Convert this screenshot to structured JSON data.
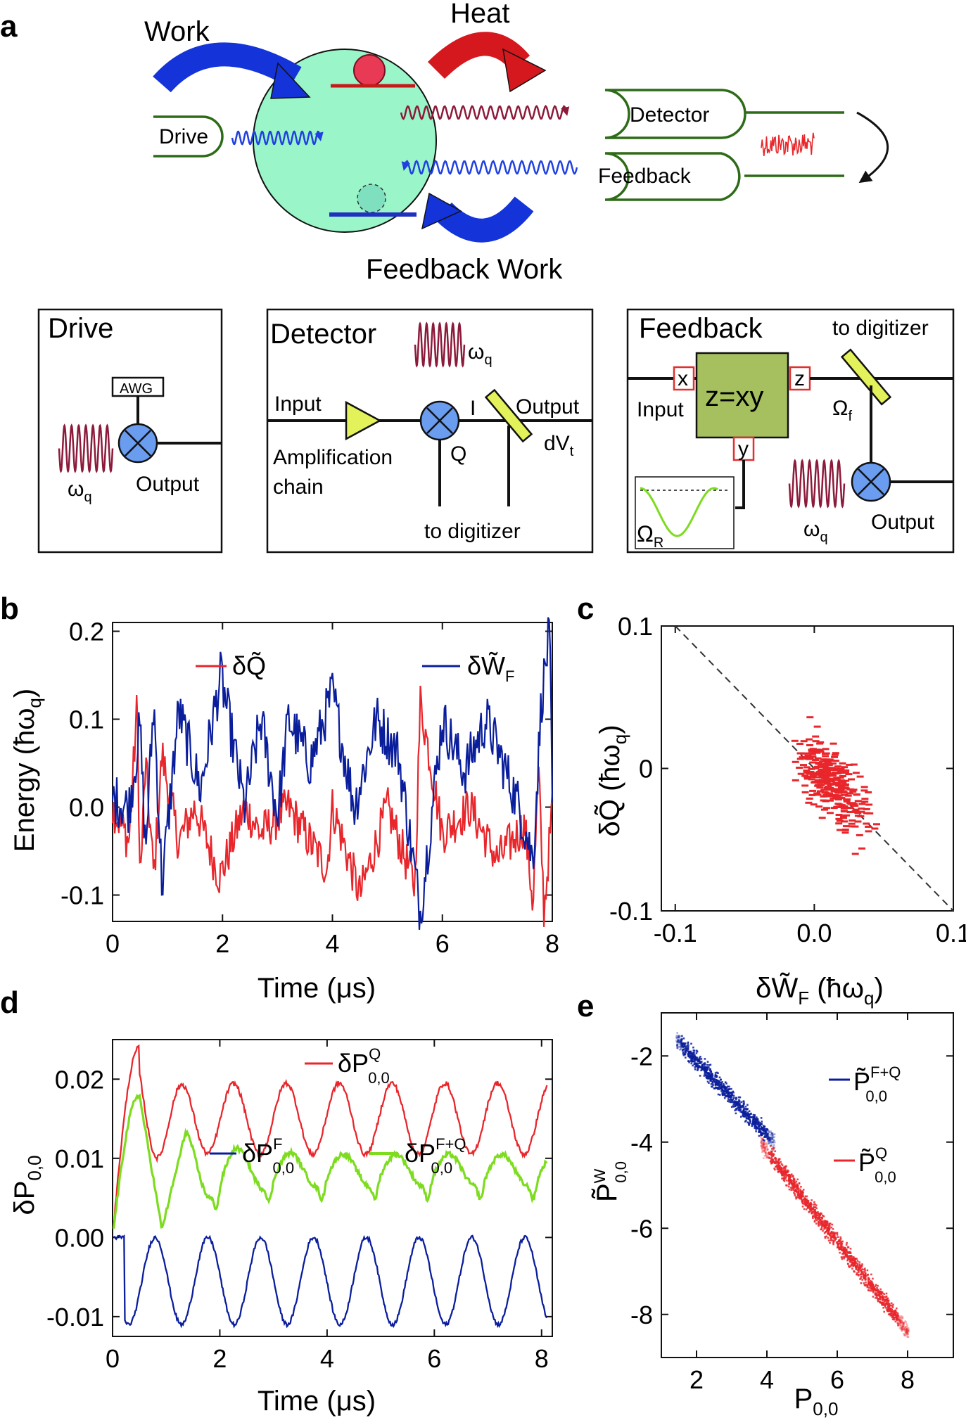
{
  "panel_a": {
    "letter": "a",
    "top": {
      "work": "Work",
      "heat": "Heat",
      "feedback_work": "Feedback Work",
      "drive": "Drive",
      "detector": "Detector",
      "feedback": "Feedback"
    },
    "drive_box": {
      "title": "Drive",
      "awg": "AWG",
      "omega": "ω",
      "omega_sub": "q",
      "output": "Output"
    },
    "detector_box": {
      "title": "Detector",
      "omega": "ω",
      "omega_sub": "q",
      "input": "Input",
      "amp1": "Amplification",
      "amp2": "chain",
      "i": "I",
      "q": "Q",
      "output": "Output",
      "dv": "dV",
      "dv_sub": "t",
      "digitizer": "to digitizer"
    },
    "feedback_box": {
      "title": "Feedback",
      "digitizer": "to digitizer",
      "x": "x",
      "z": "z",
      "y": "y",
      "formula": "z=xy",
      "input": "Input",
      "omega_f": "Ω",
      "omega_f_sub": "f",
      "omega_r": "Ω",
      "omega_r_sub": "R",
      "omega": "ω",
      "omega_sub": "q",
      "output": "Output"
    }
  },
  "panel_b": {
    "letter": "b",
    "ylabel": "Energy (ħω",
    "ylabel_sub": "q",
    "ylabel_end": ")",
    "xlabel": "Time (μs)",
    "legend_q": "δQ̃",
    "legend_w": "δW̃",
    "legend_w_sub": "F"
  },
  "panel_c": {
    "letter": "c",
    "ylabel": "δQ̃ (ħω",
    "ylabel_sub": "q",
    "ylabel_end": ")",
    "xlabel": "δW̃",
    "xlabel_sub": "F",
    "xlabel_end": " (ħω",
    "xlabel_sub2": "q",
    "xlabel_end2": ")"
  },
  "panel_d": {
    "letter": "d",
    "ylabel": "δP",
    "ylabel_sub": "0,0",
    "xlabel": "Time (μs)",
    "leg_q": "δP",
    "leg_q_sup": "Q",
    "leg_q_sub": "0,0",
    "leg_f": "δP",
    "leg_f_sup": "F",
    "leg_f_sub": "0,0",
    "leg_fq": "δP",
    "leg_fq_sup": "F+Q",
    "leg_fq_sub": "0,0"
  },
  "panel_e": {
    "letter": "e",
    "ylabel": "P̃",
    "ylabel_sup": "W",
    "ylabel_sub": "0,0",
    "xlabel": "P",
    "xlabel_sub": "0,0",
    "leg_fq": "P̃",
    "leg_fq_sup": "F+Q",
    "leg_fq_sub": "0,0",
    "leg_q": "P̃",
    "leg_q_sup": "Q",
    "leg_q_sub": "0,0"
  },
  "colors": {
    "red": "#e8262b",
    "blue": "#0a1e9c",
    "green": "#7ddc1f",
    "bubble": "#9af5c8",
    "darkgreen": "#2e6b18",
    "wine": "#8c1a3a",
    "olive": "#a6c060",
    "yellow": "#e3f15a",
    "magenta": "#e0509a"
  },
  "chart_data": [
    {
      "type": "line",
      "panel": "b",
      "xlabel": "Time (μs)",
      "ylabel": "Energy (ħωq)",
      "xlim": [
        0,
        8
      ],
      "ylim": [
        -0.13,
        0.21
      ],
      "xticks": [
        0,
        2,
        4,
        6,
        8
      ],
      "yticks": [
        -0.1,
        0.0,
        0.1,
        0.2
      ],
      "ytick_labels": [
        "-0.1",
        "0.0",
        "0.1",
        "0.2"
      ],
      "series": [
        {
          "name": "δQ̃",
          "color": "#e8262b",
          "x": [
            0,
            0.3,
            0.45,
            0.5,
            0.6,
            0.75,
            0.9,
            1.2,
            1.5,
            1.95,
            2.4,
            2.7,
            3.2,
            3.9,
            4.0,
            4.5,
            5.0,
            5.5,
            5.6,
            6.0,
            6.5,
            7.0,
            7.5,
            7.65,
            7.75,
            7.85,
            8.0
          ],
          "y": [
            0.0,
            -0.04,
            0.12,
            -0.09,
            0.05,
            -0.08,
            0.06,
            -0.04,
            0.0,
            -0.08,
            0.0,
            -0.03,
            0.0,
            -0.07,
            0.0,
            -0.1,
            0.0,
            -0.09,
            0.12,
            -0.03,
            0.0,
            -0.06,
            -0.02,
            -0.11,
            0.04,
            -0.12,
            0.0
          ]
        },
        {
          "name": "δW̃F",
          "color": "#0a1e9c",
          "x": [
            0,
            0.3,
            0.5,
            0.6,
            0.75,
            0.9,
            1.2,
            1.6,
            1.97,
            2.4,
            2.7,
            3.0,
            3.2,
            3.6,
            4.0,
            4.4,
            4.8,
            5.2,
            5.6,
            6.0,
            6.4,
            6.8,
            7.4,
            7.65,
            7.8,
            7.95,
            8.0
          ],
          "y": [
            0.01,
            0.0,
            0.09,
            -0.05,
            0.12,
            -0.09,
            0.11,
            0.02,
            0.15,
            0.0,
            0.1,
            -0.01,
            0.1,
            0.05,
            0.13,
            0.0,
            0.1,
            0.06,
            -0.12,
            0.1,
            0.04,
            0.1,
            0.0,
            -0.06,
            0.12,
            0.2,
            0.0
          ]
        }
      ]
    },
    {
      "type": "scatter",
      "panel": "c",
      "xlabel": "δW̃F (ħωq)",
      "ylabel": "δQ̃ (ħωq)",
      "xlim": [
        -0.11,
        0.1
      ],
      "ylim": [
        -0.1,
        0.1
      ],
      "xticks": [
        -0.1,
        0.0,
        0.1
      ],
      "xtick_labels": [
        "-0.1",
        "0.0",
        "0.1"
      ],
      "yticks": [
        -0.1,
        0,
        0.1
      ],
      "ytick_labels": [
        "-0.1",
        "0",
        "0.1"
      ],
      "reference_line": {
        "slope": -1,
        "intercept": 0,
        "style": "dashed"
      },
      "series": [
        {
          "color": "#e8262b",
          "count": 320,
          "trend": "anticorrelated, centered near (0.01, -0.01)"
        }
      ]
    },
    {
      "type": "line",
      "panel": "d",
      "xlabel": "Time (μs)",
      "ylabel": "δP0,0",
      "xlim": [
        0,
        8.2
      ],
      "ylim": [
        -0.0125,
        0.025
      ],
      "xticks": [
        0,
        2,
        4,
        6,
        8
      ],
      "yticks": [
        -0.01,
        0.0,
        0.01,
        0.02
      ],
      "ytick_labels": [
        "-0.01",
        "0.00",
        "0.01",
        "0.02"
      ],
      "series": [
        {
          "name": "δP0,0^Q",
          "color": "#e8262b",
          "model": "damped oscillation, first peak 0.024 at 0.5 μs, then oscillates 0.011–0.019, period ≈ 1 μs"
        },
        {
          "name": "δP0,0^F",
          "color": "#0a1e9c",
          "model": "periodic dips, max ≈ 0.000, min ≈ -0.011, period ≈ 1 μs"
        },
        {
          "name": "δP0,0^F+Q",
          "color": "#7ddc1f",
          "model": "first peak 0.018 at 0.5 μs, dip 0.001 at 0.9 μs, settles ≈ 0.008–0.010"
        }
      ]
    },
    {
      "type": "scatter",
      "panel": "e",
      "xlabel": "P0,0",
      "ylabel": "P̃0,0^W",
      "xlim": [
        1,
        9.3
      ],
      "ylim": [
        -9,
        -1
      ],
      "xticks": [
        2,
        4,
        6,
        8
      ],
      "yticks": [
        -2,
        -4,
        -6,
        -8
      ],
      "series": [
        {
          "name": "P̃0,0^F+Q",
          "color": "#0a1e9c",
          "x_range": [
            1.4,
            4.2
          ],
          "y_range": [
            -1.6,
            -4.0
          ]
        },
        {
          "name": "P̃0,0^Q",
          "color": "#e8262b",
          "x_range": [
            3.8,
            8.0
          ],
          "y_range": [
            -4.0,
            -8.4
          ]
        }
      ]
    }
  ]
}
